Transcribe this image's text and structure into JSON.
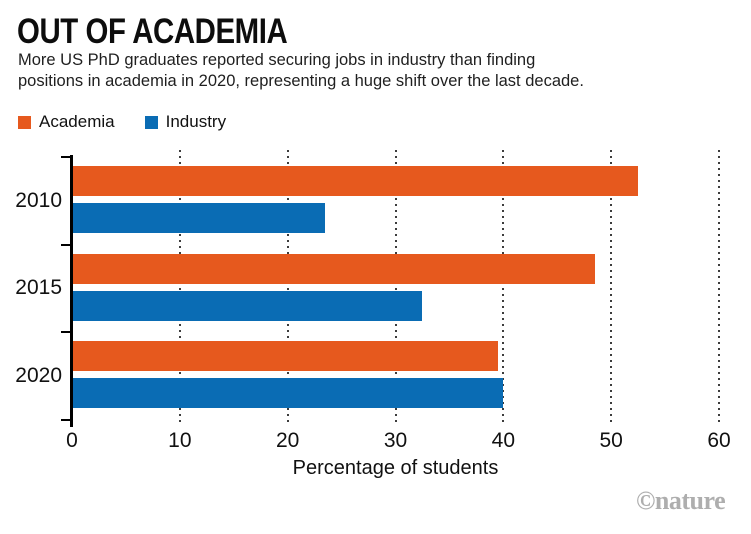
{
  "header": {
    "title": "OUT OF ACADEMIA",
    "subtitle_lines": [
      "More US PhD graduates reported securing jobs in industry than finding",
      "positions in academia in 2020, representing a huge shift over the last decade."
    ]
  },
  "watermark": "©nature",
  "colors": {
    "academia": "#e6591e",
    "industry": "#0a6cb4",
    "axis": "#000000",
    "gridline_dots": "#3c3c3c",
    "watermark_gray": "#aeaeae"
  },
  "chart_data": {
    "type": "bar",
    "orientation": "horizontal",
    "title": "OUT OF ACADEMIA",
    "subtitle": "More US PhD graduates reported securing jobs in industry than finding positions in academia in 2020, representing a huge shift over the last decade.",
    "categories": [
      "2010",
      "2015",
      "2020"
    ],
    "series": [
      {
        "name": "Academia",
        "color": "#e6591e",
        "values": [
          52.5,
          48.5,
          39.5
        ]
      },
      {
        "name": "Industry",
        "color": "#0a6cb4",
        "values": [
          23.5,
          32.5,
          40
        ]
      }
    ],
    "xlabel": "Percentage of students",
    "ylabel": "",
    "xlim": [
      0,
      60
    ],
    "xticks": [
      0,
      10,
      20,
      30,
      40,
      50,
      60
    ],
    "grid": "vertical-dotted",
    "legend_position": "top-left",
    "source_watermark": "©nature"
  }
}
